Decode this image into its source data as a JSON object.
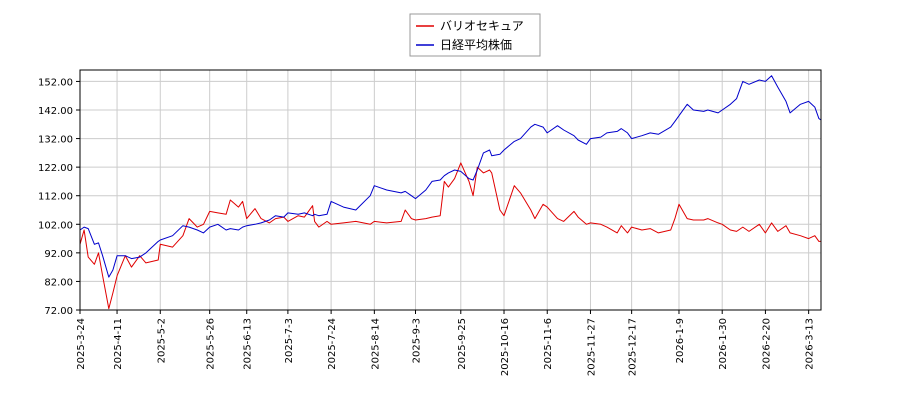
{
  "chart_data": {
    "type": "line",
    "title": "",
    "xlabel": "",
    "ylabel": "",
    "ylim": [
      72,
      156
    ],
    "y_ticks": [
      "72.00",
      "82.00",
      "92.00",
      "102.00",
      "112.00",
      "122.00",
      "132.00",
      "142.00",
      "152.00"
    ],
    "x_ticks": [
      "2025-3-24",
      "2025-4-11",
      "2025-5-2",
      "2025-5-26",
      "2025-6-13",
      "2025-7-3",
      "2025-7-24",
      "2025-8-14",
      "2025-9-3",
      "2025-9-25",
      "2025-10-16",
      "2025-11-6",
      "2025-11-27",
      "2025-12-17",
      "2026-1-9",
      "2026-1-30",
      "2026-2-20",
      "2026-3-13"
    ],
    "grid": true,
    "legend_position": "top-center",
    "series": [
      {
        "name": "バリオセキュア",
        "color": "#e00000",
        "points": [
          [
            "2025-3-24",
            95.0
          ],
          [
            "2025-3-26",
            100.0
          ],
          [
            "2025-3-28",
            90.5
          ],
          [
            "2025-3-31",
            88.0
          ],
          [
            "2025-4-2",
            92.0
          ],
          [
            "2025-4-4",
            84.0
          ],
          [
            "2025-4-7",
            72.5
          ],
          [
            "2025-4-9",
            78.0
          ],
          [
            "2025-4-11",
            84.0
          ],
          [
            "2025-4-15",
            91.0
          ],
          [
            "2025-4-18",
            87.0
          ],
          [
            "2025-4-22",
            91.0
          ],
          [
            "2025-4-25",
            88.5
          ],
          [
            "2025-5-1",
            89.5
          ],
          [
            "2025-5-2",
            95.0
          ],
          [
            "2025-5-8",
            94.0
          ],
          [
            "2025-5-13",
            98.0
          ],
          [
            "2025-5-16",
            104.0
          ],
          [
            "2025-5-20",
            101.0
          ],
          [
            "2025-5-23",
            102.0
          ],
          [
            "2025-5-26",
            106.5
          ],
          [
            "2025-5-30",
            106.0
          ],
          [
            "2025-6-3",
            105.5
          ],
          [
            "2025-6-5",
            110.5
          ],
          [
            "2025-6-9",
            108.0
          ],
          [
            "2025-6-11",
            110.0
          ],
          [
            "2025-6-13",
            104.0
          ],
          [
            "2025-6-17",
            107.5
          ],
          [
            "2025-6-20",
            104.0
          ],
          [
            "2025-6-24",
            102.5
          ],
          [
            "2025-6-27",
            104.0
          ],
          [
            "2025-7-1",
            104.5
          ],
          [
            "2025-7-3",
            103.0
          ],
          [
            "2025-7-8",
            105.0
          ],
          [
            "2025-7-11",
            104.5
          ],
          [
            "2025-7-15",
            108.5
          ],
          [
            "2025-7-16",
            103.0
          ],
          [
            "2025-7-18",
            101.0
          ],
          [
            "2025-7-22",
            103.0
          ],
          [
            "2025-7-24",
            102.0
          ],
          [
            "2025-7-30",
            102.5
          ],
          [
            "2025-8-5",
            103.0
          ],
          [
            "2025-8-12",
            102.0
          ],
          [
            "2025-8-14",
            103.0
          ],
          [
            "2025-8-20",
            102.5
          ],
          [
            "2025-8-27",
            103.0
          ],
          [
            "2025-8-29",
            107.0
          ],
          [
            "2025-9-1",
            104.0
          ],
          [
            "2025-9-3",
            103.5
          ],
          [
            "2025-9-8",
            104.0
          ],
          [
            "2025-9-11",
            104.5
          ],
          [
            "2025-9-15",
            105.0
          ],
          [
            "2025-9-17",
            117.0
          ],
          [
            "2025-9-19",
            115.0
          ],
          [
            "2025-9-22",
            118.0
          ],
          [
            "2025-9-25",
            123.5
          ],
          [
            "2025-9-29",
            117.0
          ],
          [
            "2025-10-1",
            112.0
          ],
          [
            "2025-10-3",
            122.0
          ],
          [
            "2025-10-6",
            120.0
          ],
          [
            "2025-10-9",
            121.0
          ],
          [
            "2025-10-10",
            120.0
          ],
          [
            "2025-10-14",
            107.0
          ],
          [
            "2025-10-16",
            105.0
          ],
          [
            "2025-10-21",
            115.5
          ],
          [
            "2025-10-24",
            113.0
          ],
          [
            "2025-10-29",
            107.0
          ],
          [
            "2025-10-31",
            104.0
          ],
          [
            "2025-11-4",
            109.0
          ],
          [
            "2025-11-6",
            108.0
          ],
          [
            "2025-11-11",
            104.0
          ],
          [
            "2025-11-14",
            103.0
          ],
          [
            "2025-11-19",
            106.5
          ],
          [
            "2025-11-21",
            104.5
          ],
          [
            "2025-11-25",
            102.0
          ],
          [
            "2025-11-27",
            102.5
          ],
          [
            "2025-12-2",
            102.0
          ],
          [
            "2025-12-5",
            101.0
          ],
          [
            "2025-12-10",
            99.0
          ],
          [
            "2025-12-12",
            101.5
          ],
          [
            "2025-12-15",
            99.0
          ],
          [
            "2025-12-17",
            101.0
          ],
          [
            "2025-12-22",
            100.0
          ],
          [
            "2025-12-26",
            100.5
          ],
          [
            "2025-12-30",
            99.0
          ],
          [
            "2026-1-5",
            100.0
          ],
          [
            "2026-1-7",
            104.0
          ],
          [
            "2026-1-9",
            109.0
          ],
          [
            "2026-1-13",
            104.0
          ],
          [
            "2026-1-16",
            103.5
          ],
          [
            "2026-1-21",
            103.5
          ],
          [
            "2026-1-23",
            104.0
          ],
          [
            "2026-1-28",
            102.5
          ],
          [
            "2026-1-30",
            102.0
          ],
          [
            "2026-2-3",
            100.0
          ],
          [
            "2026-2-6",
            99.5
          ],
          [
            "2026-2-9",
            101.0
          ],
          [
            "2026-2-12",
            99.5
          ],
          [
            "2026-2-17",
            102.0
          ],
          [
            "2026-2-20",
            99.0
          ],
          [
            "2026-2-23",
            102.5
          ],
          [
            "2026-2-26",
            99.5
          ],
          [
            "2026-3-2",
            101.5
          ],
          [
            "2026-3-4",
            99.0
          ],
          [
            "2026-3-9",
            98.0
          ],
          [
            "2026-3-13",
            97.0
          ],
          [
            "2026-3-16",
            98.0
          ],
          [
            "2026-3-18",
            96.0
          ],
          [
            "2026-3-19",
            96.0
          ]
        ]
      },
      {
        "name": "日経平均株価",
        "color": "#0000cc",
        "points": [
          [
            "2025-3-24",
            100.0
          ],
          [
            "2025-3-26",
            101.0
          ],
          [
            "2025-3-28",
            100.5
          ],
          [
            "2025-3-31",
            95.0
          ],
          [
            "2025-4-2",
            95.5
          ],
          [
            "2025-4-4",
            91.0
          ],
          [
            "2025-4-7",
            83.5
          ],
          [
            "2025-4-9",
            86.0
          ],
          [
            "2025-4-11",
            91.0
          ],
          [
            "2025-4-15",
            91.0
          ],
          [
            "2025-4-18",
            90.0
          ],
          [
            "2025-4-22",
            90.5
          ],
          [
            "2025-4-25",
            92.0
          ],
          [
            "2025-5-1",
            96.0
          ],
          [
            "2025-5-2",
            96.5
          ],
          [
            "2025-5-8",
            98.0
          ],
          [
            "2025-5-13",
            101.5
          ],
          [
            "2025-5-16",
            101.0
          ],
          [
            "2025-5-20",
            100.0
          ],
          [
            "2025-5-23",
            99.0
          ],
          [
            "2025-5-26",
            101.0
          ],
          [
            "2025-5-30",
            102.0
          ],
          [
            "2025-6-3",
            100.0
          ],
          [
            "2025-6-5",
            100.5
          ],
          [
            "2025-6-9",
            100.0
          ],
          [
            "2025-6-11",
            101.0
          ],
          [
            "2025-6-13",
            101.5
          ],
          [
            "2025-6-17",
            102.0
          ],
          [
            "2025-6-20",
            102.5
          ],
          [
            "2025-6-24",
            103.5
          ],
          [
            "2025-6-27",
            105.0
          ],
          [
            "2025-7-1",
            104.5
          ],
          [
            "2025-7-3",
            106.0
          ],
          [
            "2025-7-8",
            105.5
          ],
          [
            "2025-7-11",
            106.0
          ],
          [
            "2025-7-15",
            105.0
          ],
          [
            "2025-7-16",
            105.5
          ],
          [
            "2025-7-18",
            105.0
          ],
          [
            "2025-7-22",
            105.5
          ],
          [
            "2025-7-24",
            110.0
          ],
          [
            "2025-7-30",
            108.0
          ],
          [
            "2025-8-5",
            107.0
          ],
          [
            "2025-8-12",
            112.0
          ],
          [
            "2025-8-14",
            115.5
          ],
          [
            "2025-8-20",
            114.0
          ],
          [
            "2025-8-27",
            113.0
          ],
          [
            "2025-8-29",
            113.5
          ],
          [
            "2025-9-1",
            112.0
          ],
          [
            "2025-9-3",
            111.0
          ],
          [
            "2025-9-8",
            114.0
          ],
          [
            "2025-9-11",
            117.0
          ],
          [
            "2025-9-15",
            117.5
          ],
          [
            "2025-9-17",
            119.0
          ],
          [
            "2025-9-19",
            120.0
          ],
          [
            "2025-9-22",
            121.0
          ],
          [
            "2025-9-25",
            120.5
          ],
          [
            "2025-9-29",
            118.0
          ],
          [
            "2025-10-1",
            117.5
          ],
          [
            "2025-10-3",
            121.0
          ],
          [
            "2025-10-6",
            127.0
          ],
          [
            "2025-10-9",
            128.0
          ],
          [
            "2025-10-10",
            126.0
          ],
          [
            "2025-10-14",
            126.5
          ],
          [
            "2025-10-16",
            128.0
          ],
          [
            "2025-10-21",
            131.0
          ],
          [
            "2025-10-24",
            132.0
          ],
          [
            "2025-10-29",
            136.0
          ],
          [
            "2025-10-31",
            137.0
          ],
          [
            "2025-11-4",
            136.0
          ],
          [
            "2025-11-6",
            134.0
          ],
          [
            "2025-11-11",
            136.5
          ],
          [
            "2025-11-14",
            135.0
          ],
          [
            "2025-11-19",
            133.0
          ],
          [
            "2025-11-21",
            131.5
          ],
          [
            "2025-11-25",
            130.0
          ],
          [
            "2025-11-27",
            132.0
          ],
          [
            "2025-12-2",
            132.5
          ],
          [
            "2025-12-5",
            134.0
          ],
          [
            "2025-12-10",
            134.5
          ],
          [
            "2025-12-12",
            135.5
          ],
          [
            "2025-12-15",
            134.0
          ],
          [
            "2025-12-17",
            132.0
          ],
          [
            "2025-12-22",
            133.0
          ],
          [
            "2025-12-26",
            134.0
          ],
          [
            "2025-12-30",
            133.5
          ],
          [
            "2026-1-5",
            136.0
          ],
          [
            "2026-1-7",
            138.0
          ],
          [
            "2026-1-9",
            140.0
          ],
          [
            "2026-1-13",
            144.0
          ],
          [
            "2026-1-16",
            142.0
          ],
          [
            "2026-1-21",
            141.5
          ],
          [
            "2026-1-23",
            142.0
          ],
          [
            "2026-1-28",
            141.0
          ],
          [
            "2026-1-30",
            142.0
          ],
          [
            "2026-2-3",
            144.0
          ],
          [
            "2026-2-6",
            146.0
          ],
          [
            "2026-2-9",
            152.0
          ],
          [
            "2026-2-12",
            151.0
          ],
          [
            "2026-2-17",
            152.5
          ],
          [
            "2026-2-20",
            152.0
          ],
          [
            "2026-2-23",
            154.0
          ],
          [
            "2026-2-26",
            150.0
          ],
          [
            "2026-3-2",
            145.0
          ],
          [
            "2026-3-4",
            141.0
          ],
          [
            "2026-3-9",
            144.0
          ],
          [
            "2026-3-13",
            145.0
          ],
          [
            "2026-3-16",
            143.0
          ],
          [
            "2026-3-18",
            139.0
          ],
          [
            "2026-3-19",
            138.5
          ]
        ]
      }
    ]
  }
}
